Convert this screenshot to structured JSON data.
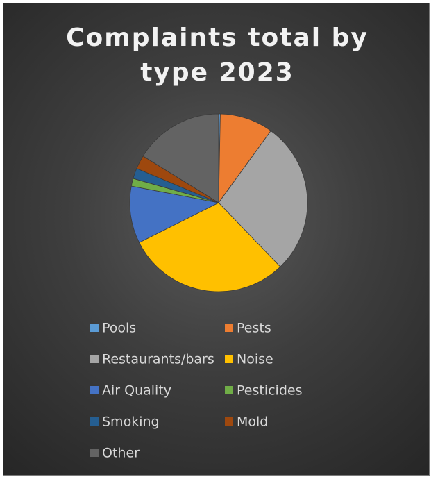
{
  "chart_data": {
    "type": "pie",
    "title": [
      "Complaints total by",
      "type 2023"
    ],
    "categories": [
      "Pools",
      "Pests",
      "Restaurants/bars",
      "Noise",
      "Air Quality",
      "Pesticides",
      "Smoking",
      "Mold",
      "Other"
    ],
    "values": [
      0.3,
      9.7,
      27.8,
      29.8,
      10.4,
      1.4,
      1.9,
      2.5,
      16.2
    ],
    "colors": [
      "#5b9bd5",
      "#ed7d31",
      "#a5a5a5",
      "#ffc000",
      "#4472c4",
      "#70ad47",
      "#255e91",
      "#9e480e",
      "#636363"
    ],
    "legend": "bottom"
  }
}
